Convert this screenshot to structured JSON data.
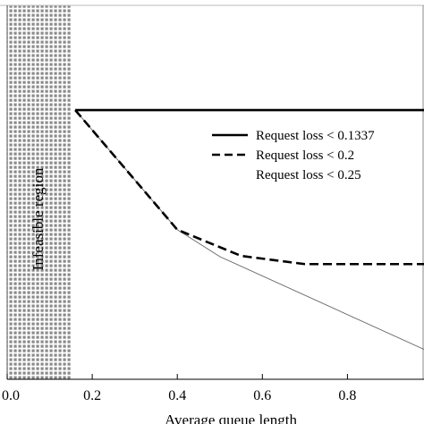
{
  "chart_data": {
    "type": "line",
    "xlabel": "Average queue length",
    "ylabel": "",
    "xlim": [
      0.0,
      0.98
    ],
    "ylim": [
      0.0,
      1.0
    ],
    "x_ticks": [
      {
        "value": 0.0,
        "label": "0.0"
      },
      {
        "value": 0.2,
        "label": "0.2"
      },
      {
        "value": 0.4,
        "label": "0.4"
      },
      {
        "value": 0.6,
        "label": "0.6"
      },
      {
        "value": 0.8,
        "label": "0.8"
      }
    ],
    "grid": false,
    "legend_position": "top-right",
    "shaded_region": {
      "label": "Infeasible region",
      "x_range": [
        0.0,
        0.15
      ]
    },
    "series": [
      {
        "name": "Request loss < 0.1337",
        "style": "solid",
        "x": [
          0.16,
          0.98
        ],
        "y": [
          0.72,
          0.72
        ]
      },
      {
        "name": "Request loss < 0.2",
        "style": "dashed",
        "x": [
          0.16,
          0.4,
          0.55,
          0.7,
          0.98
        ],
        "y": [
          0.72,
          0.4,
          0.33,
          0.308,
          0.308
        ]
      },
      {
        "name": "Request loss < 0.25",
        "style": "thin",
        "x": [
          0.16,
          0.4,
          0.5,
          0.98
        ],
        "y": [
          0.72,
          0.4,
          0.328,
          0.08
        ]
      }
    ]
  }
}
